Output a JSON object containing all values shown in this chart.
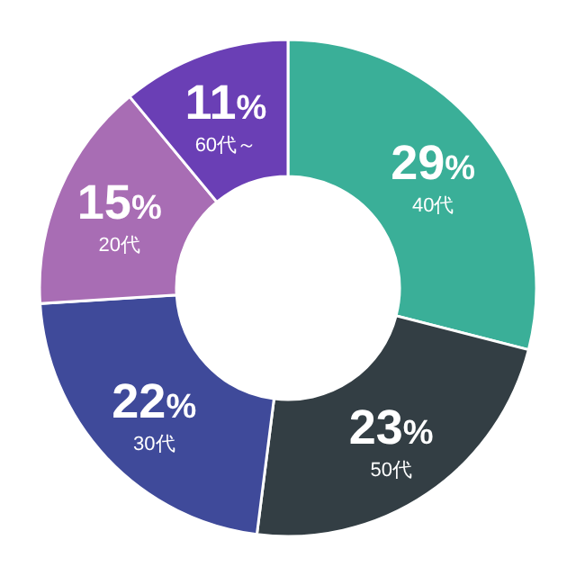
{
  "chart_data": {
    "type": "donut",
    "categories": [
      "40代",
      "50代",
      "30代",
      "20代",
      "60代～"
    ],
    "values": [
      29,
      23,
      22,
      15,
      11
    ],
    "colors": [
      "#3aaf98",
      "#333e44",
      "#3f4a9a",
      "#a86db4",
      "#6a3fb5"
    ],
    "value_labels": [
      "29%",
      "23%",
      "22%",
      "15%",
      "11%"
    ]
  }
}
